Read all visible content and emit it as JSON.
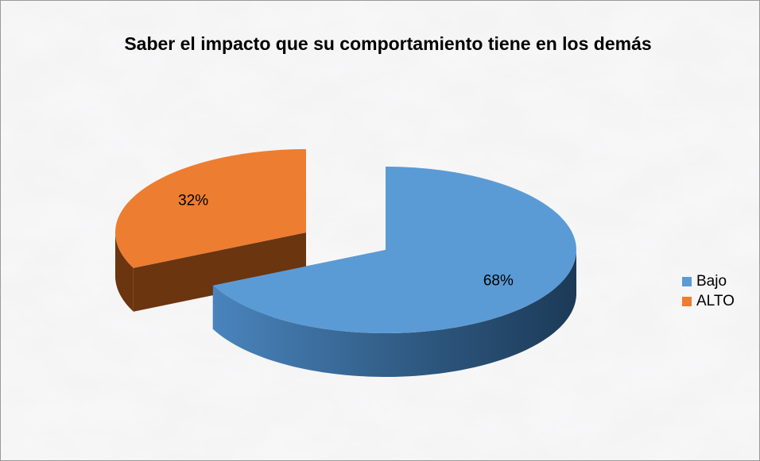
{
  "chart_data": {
    "type": "pie",
    "title": "Saber el impacto que su comportamiento tiene en los demás",
    "categories": [
      "Bajo",
      "ALTO"
    ],
    "values": [
      68,
      32
    ],
    "value_labels": [
      "68%",
      "32%"
    ],
    "colors": [
      "#5b9bd5",
      "#ed7d31"
    ],
    "legend": "right"
  }
}
